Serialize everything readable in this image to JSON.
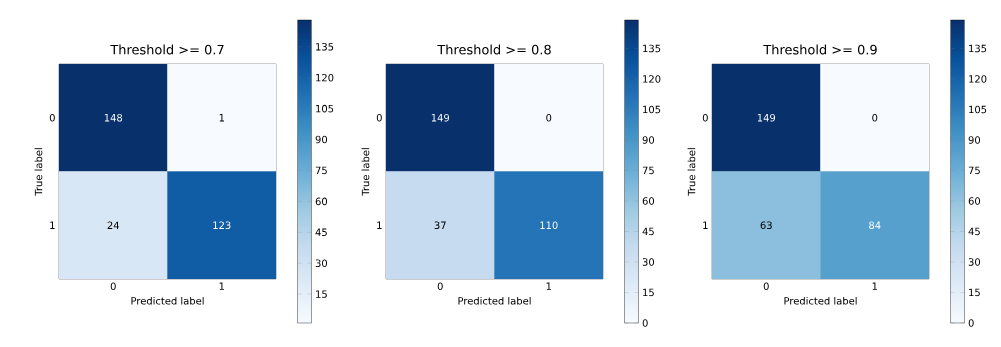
{
  "chart_data": [
    {
      "type": "heatmap",
      "title": "Threshold >= 0.7",
      "xlabel": "Predicted label",
      "ylabel": "True label",
      "categories": [
        "0",
        "1"
      ],
      "y_categories": [
        "0",
        "1"
      ],
      "cells": [
        [
          148,
          1
        ],
        [
          24,
          123
        ]
      ],
      "data_labels": true,
      "clim": [
        1,
        148
      ],
      "cticks": [
        15,
        30,
        45,
        60,
        75,
        90,
        105,
        120,
        135
      ]
    },
    {
      "type": "heatmap",
      "title": "Threshold >= 0.8",
      "xlabel": "Predicted label",
      "ylabel": "True label",
      "categories": [
        "0",
        "1"
      ],
      "y_categories": [
        "0",
        "1"
      ],
      "cells": [
        [
          149,
          0
        ],
        [
          37,
          110
        ]
      ],
      "data_labels": true,
      "clim": [
        0,
        149
      ],
      "cticks": [
        0,
        15,
        30,
        45,
        60,
        75,
        90,
        105,
        120,
        135
      ]
    },
    {
      "type": "heatmap",
      "title": "Threshold >= 0.9",
      "xlabel": "Predicted label",
      "ylabel": "True label",
      "categories": [
        "0",
        "1"
      ],
      "y_categories": [
        "0",
        "1"
      ],
      "cells": [
        [
          149,
          0
        ],
        [
          63,
          84
        ]
      ],
      "data_labels": true,
      "clim": [
        0,
        149
      ],
      "cticks": [
        0,
        15,
        30,
        45,
        60,
        75,
        90,
        105,
        120,
        135
      ]
    }
  ]
}
